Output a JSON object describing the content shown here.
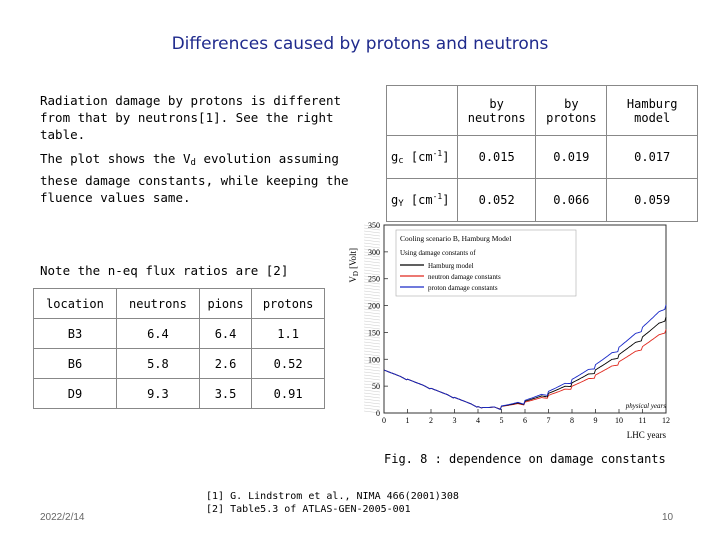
{
  "title": "Differences caused by protons and neutrons",
  "para1": "Radiation damage by protons is different from that by neutrons[1]. See the right table.",
  "para2": {
    "before": "The plot shows the V",
    "sub": "d",
    "after": " evolution assuming these damage constants, while keeping the fluence values same."
  },
  "damage_table": {
    "headers": [
      "by neutrons",
      "by protons",
      "Hamburg model"
    ],
    "rows": [
      {
        "label_main": "g",
        "label_sub": "c",
        "label_unit": " [cm",
        "label_sup": "-1",
        "label_end": "]",
        "values": [
          "0.015",
          "0.019",
          "0.017"
        ]
      },
      {
        "label_main": "g",
        "label_sub": "Y",
        "label_unit": " [cm",
        "label_sup": "-1",
        "label_end": "]",
        "values": [
          "0.052",
          "0.066",
          "0.059"
        ]
      }
    ]
  },
  "note": "Note the n-eq flux ratios are [2]",
  "flux_table": {
    "headers": [
      "location",
      "neutrons",
      "pions",
      "protons"
    ],
    "rows": [
      [
        "B3",
        "6.4",
        "6.4",
        "1.1"
      ],
      [
        "B6",
        "5.8",
        "2.6",
        "0.52"
      ],
      [
        "D9",
        "9.3",
        "3.5",
        "0.91"
      ]
    ]
  },
  "plot": {
    "ylabel": "V",
    "ylabel_sub": "D",
    "ylabel_unit": " [Volt]",
    "xlabel": "LHC years",
    "yticks": [
      "0",
      "50",
      "100",
      "150",
      "200",
      "250",
      "300",
      "350"
    ],
    "xticks": [
      "0",
      "1",
      "2",
      "3",
      "4",
      "5",
      "6",
      "7",
      "8",
      "9",
      "10",
      "11",
      "12"
    ],
    "legend": {
      "title": "Cooling scenario B, Hamburg Model",
      "subtitle": "Using damage constants of",
      "entries": [
        "Hamburg model",
        "neutron damage constants",
        "proton damage constants"
      ]
    },
    "annotation": "physical years",
    "colors": {
      "hamburg": "#000000",
      "neutron": "#e0281e",
      "proton": "#1a2ac8"
    }
  },
  "caption": "Fig. 8 : dependence on damage constants",
  "refs": [
    "[1] G. Lindstrom et al., NIMA 466(2001)308",
    "[2]  Table5.3 of ATLAS-GEN-2005-001"
  ],
  "date": "2022/2/14",
  "page_number": "10"
}
